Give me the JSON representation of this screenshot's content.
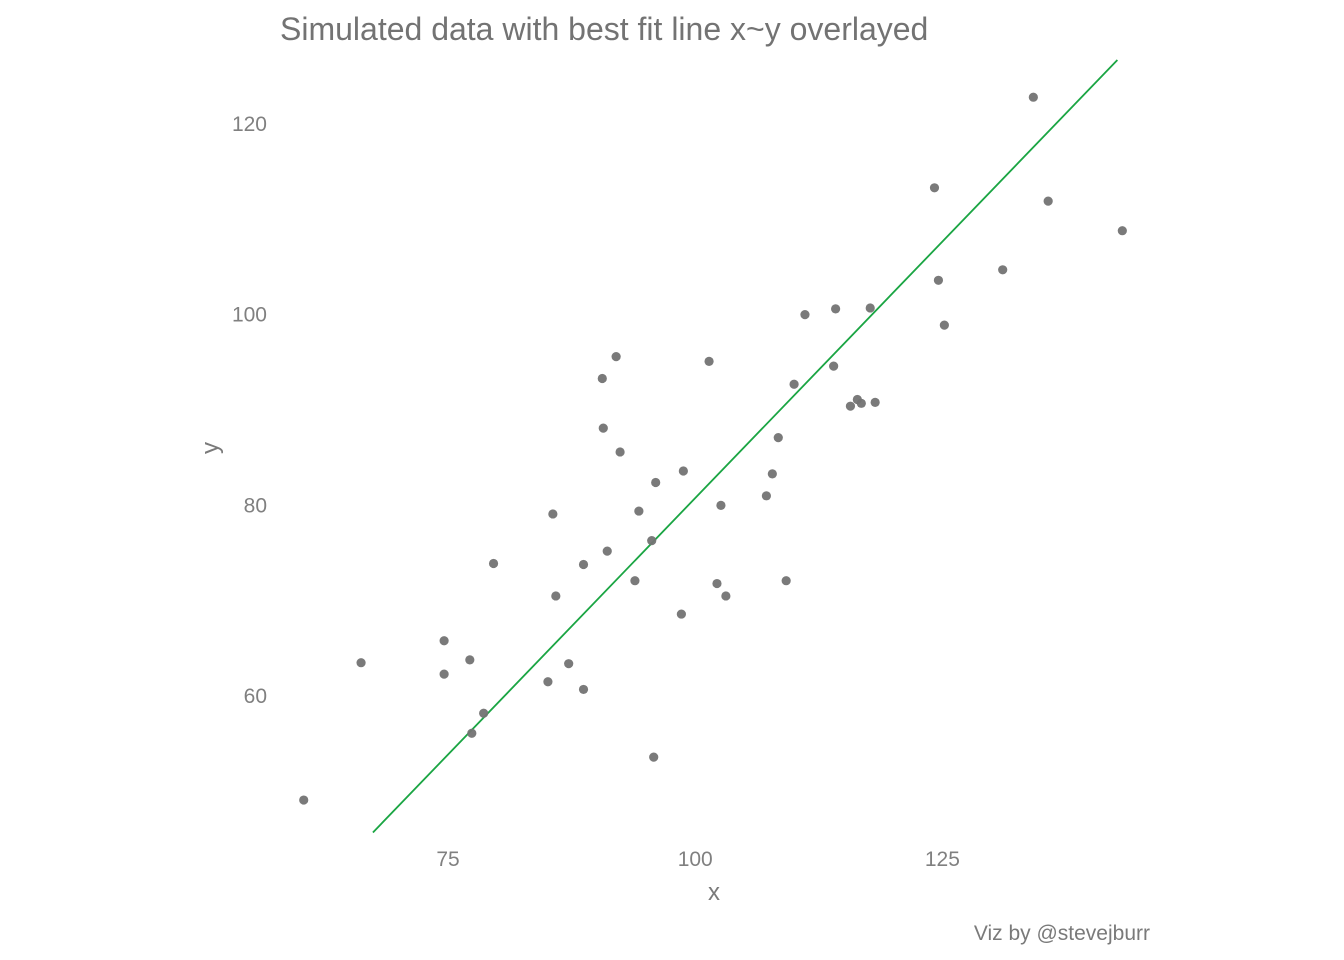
{
  "chart_data": {
    "type": "scatter",
    "title": "Simulated data with best fit line x~y overlayed",
    "xlabel": "x",
    "ylabel": "y",
    "caption": "Viz by @stevejburr",
    "xlim": [
      58,
      146
    ],
    "ylim": [
      44.7,
      126.7
    ],
    "x_ticks": [
      75,
      100,
      125
    ],
    "y_ticks": [
      60,
      80,
      100,
      120
    ],
    "grid": false,
    "legend": "none",
    "point_color": "#737373",
    "line_color": "#1aa543",
    "fit_line": {
      "x": [
        67.4,
        142.7
      ],
      "y": [
        45.7,
        126.7
      ]
    },
    "points": [
      {
        "x": 60.4,
        "y": 49.1
      },
      {
        "x": 66.2,
        "y": 63.5
      },
      {
        "x": 74.6,
        "y": 65.8
      },
      {
        "x": 74.6,
        "y": 62.3
      },
      {
        "x": 77.2,
        "y": 63.8
      },
      {
        "x": 77.4,
        "y": 56.1
      },
      {
        "x": 78.6,
        "y": 58.2
      },
      {
        "x": 79.6,
        "y": 73.9
      },
      {
        "x": 85.1,
        "y": 61.5
      },
      {
        "x": 85.6,
        "y": 79.1
      },
      {
        "x": 85.9,
        "y": 70.5
      },
      {
        "x": 87.2,
        "y": 63.4
      },
      {
        "x": 88.7,
        "y": 60.7
      },
      {
        "x": 88.7,
        "y": 73.8
      },
      {
        "x": 90.6,
        "y": 93.3
      },
      {
        "x": 90.7,
        "y": 88.1
      },
      {
        "x": 91.1,
        "y": 75.2
      },
      {
        "x": 92.0,
        "y": 95.6
      },
      {
        "x": 92.4,
        "y": 85.6
      },
      {
        "x": 93.9,
        "y": 72.1
      },
      {
        "x": 94.3,
        "y": 79.4
      },
      {
        "x": 95.6,
        "y": 76.3
      },
      {
        "x": 95.8,
        "y": 53.6
      },
      {
        "x": 96.0,
        "y": 82.4
      },
      {
        "x": 98.6,
        "y": 68.6
      },
      {
        "x": 98.8,
        "y": 83.6
      },
      {
        "x": 101.4,
        "y": 95.1
      },
      {
        "x": 102.2,
        "y": 71.8
      },
      {
        "x": 102.6,
        "y": 80.0
      },
      {
        "x": 103.1,
        "y": 70.5
      },
      {
        "x": 107.2,
        "y": 81.0
      },
      {
        "x": 107.8,
        "y": 83.3
      },
      {
        "x": 108.4,
        "y": 87.1
      },
      {
        "x": 109.2,
        "y": 72.1
      },
      {
        "x": 110.0,
        "y": 92.7
      },
      {
        "x": 111.1,
        "y": 100.0
      },
      {
        "x": 114.0,
        "y": 94.6
      },
      {
        "x": 114.2,
        "y": 100.6
      },
      {
        "x": 115.7,
        "y": 90.4
      },
      {
        "x": 116.4,
        "y": 91.1
      },
      {
        "x": 116.8,
        "y": 90.7
      },
      {
        "x": 117.7,
        "y": 100.7
      },
      {
        "x": 118.2,
        "y": 90.8
      },
      {
        "x": 124.2,
        "y": 113.3
      },
      {
        "x": 124.6,
        "y": 103.6
      },
      {
        "x": 125.2,
        "y": 98.9
      },
      {
        "x": 131.1,
        "y": 104.7
      },
      {
        "x": 134.2,
        "y": 122.8
      },
      {
        "x": 135.7,
        "y": 111.9
      },
      {
        "x": 143.2,
        "y": 108.8
      }
    ]
  }
}
